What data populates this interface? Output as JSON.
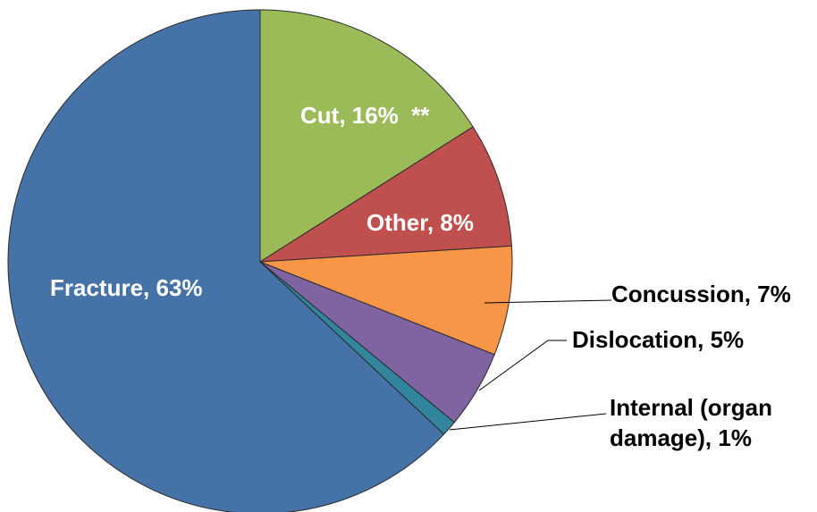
{
  "chart_data": {
    "type": "pie",
    "slices": [
      {
        "label": "Cut, 16%  **",
        "value": 16,
        "color": "#9BBB59"
      },
      {
        "label": "Other, 8%",
        "value": 8,
        "color": "#C0504D"
      },
      {
        "label": "Concussion, 7%",
        "value": 7,
        "color": "#F79646"
      },
      {
        "label": "Dislocation, 5%",
        "value": 5,
        "color": "#8064A2"
      },
      {
        "label": "Internal (organ damage), 1%",
        "label_lines": [
          "Internal (organ",
          "damage), 1%"
        ],
        "value": 1,
        "color": "#31859C"
      },
      {
        "label": "Fracture, 63%",
        "value": 63,
        "color": "#4572A7"
      }
    ],
    "legend": "none"
  }
}
